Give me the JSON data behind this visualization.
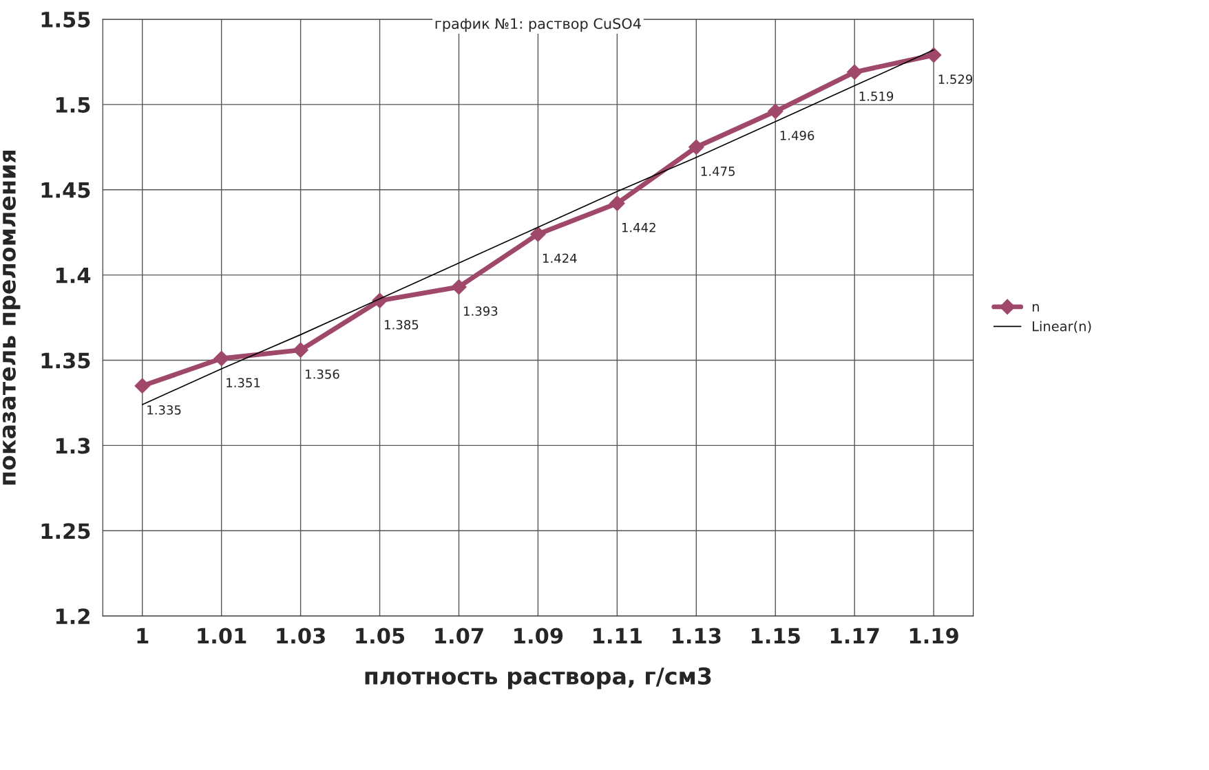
{
  "chart_data": {
    "type": "line",
    "title": "график №1: раствор CuSO4",
    "xlabel": "плотность раствора, г/см3",
    "ylabel": "показатель преломления",
    "categories": [
      "1",
      "1.01",
      "1.03",
      "1.05",
      "1.07",
      "1.09",
      "1.11",
      "1.13",
      "1.15",
      "1.17",
      "1.19"
    ],
    "series": [
      {
        "name": "n",
        "color": "#a0486a",
        "marker": "diamond",
        "data_labels": true,
        "values": [
          1.335,
          1.351,
          1.356,
          1.385,
          1.393,
          1.424,
          1.442,
          1.475,
          1.496,
          1.519,
          1.529
        ]
      },
      {
        "name": "Linear(n)",
        "color": "#000000",
        "marker": "none",
        "values": [
          1.324,
          1.345,
          1.365,
          1.386,
          1.407,
          1.428,
          1.449,
          1.469,
          1.49,
          1.511,
          1.532
        ]
      }
    ],
    "ylim": [
      1.2,
      1.55
    ],
    "yticks": [
      1.2,
      1.25,
      1.3,
      1.35,
      1.4,
      1.45,
      1.5,
      1.55
    ],
    "grid": true,
    "legend": "right"
  }
}
